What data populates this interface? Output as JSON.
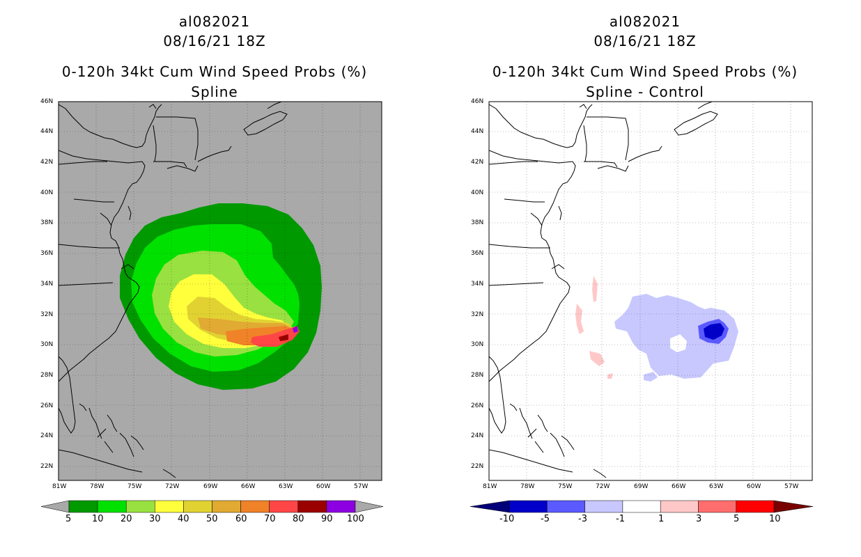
{
  "left_panel": {
    "title_line1": "al082021",
    "title_line2": "08/16/21 18Z",
    "title_line3": "0-120h 34kt Cum Wind Speed Probs (%)",
    "title_line4": "Spline",
    "background": "#a9a9a9",
    "colorbar": {
      "colors": [
        "#009900",
        "#00e100",
        "#99e141",
        "#ffff3c",
        "#e1d232",
        "#e1aa32",
        "#f08228",
        "#ff4646",
        "#9b0000",
        "#8c00e1"
      ],
      "labels": [
        "5",
        "10",
        "20",
        "30",
        "40",
        "50",
        "60",
        "70",
        "80",
        "90",
        "100"
      ]
    }
  },
  "right_panel": {
    "title_line1": "al082021",
    "title_line2": "08/16/21 18Z",
    "title_line3": "0-120h 34kt Cum Wind Speed Probs (%)",
    "title_line4": "Spline - Control",
    "background": "#ffffff",
    "colorbar": {
      "colors": [
        "#0000c8",
        "#5a5aff",
        "#c8c8ff",
        "#ffffff",
        "#ffc8c8",
        "#ff6e6e",
        "#ff0000"
      ],
      "end_colors": [
        "#000078",
        "#780000"
      ],
      "labels": [
        "-10",
        "-5",
        "-3",
        "-1",
        "1",
        "3",
        "5",
        "10"
      ]
    }
  },
  "map": {
    "lat_labels": [
      "46N",
      "44N",
      "42N",
      "40N",
      "38N",
      "36N",
      "34N",
      "32N",
      "30N",
      "28N",
      "26N",
      "24N",
      "22N"
    ],
    "lon_labels": [
      "81W",
      "78W",
      "75W",
      "72W",
      "69W",
      "66W",
      "63W",
      "60W",
      "57W"
    ]
  }
}
